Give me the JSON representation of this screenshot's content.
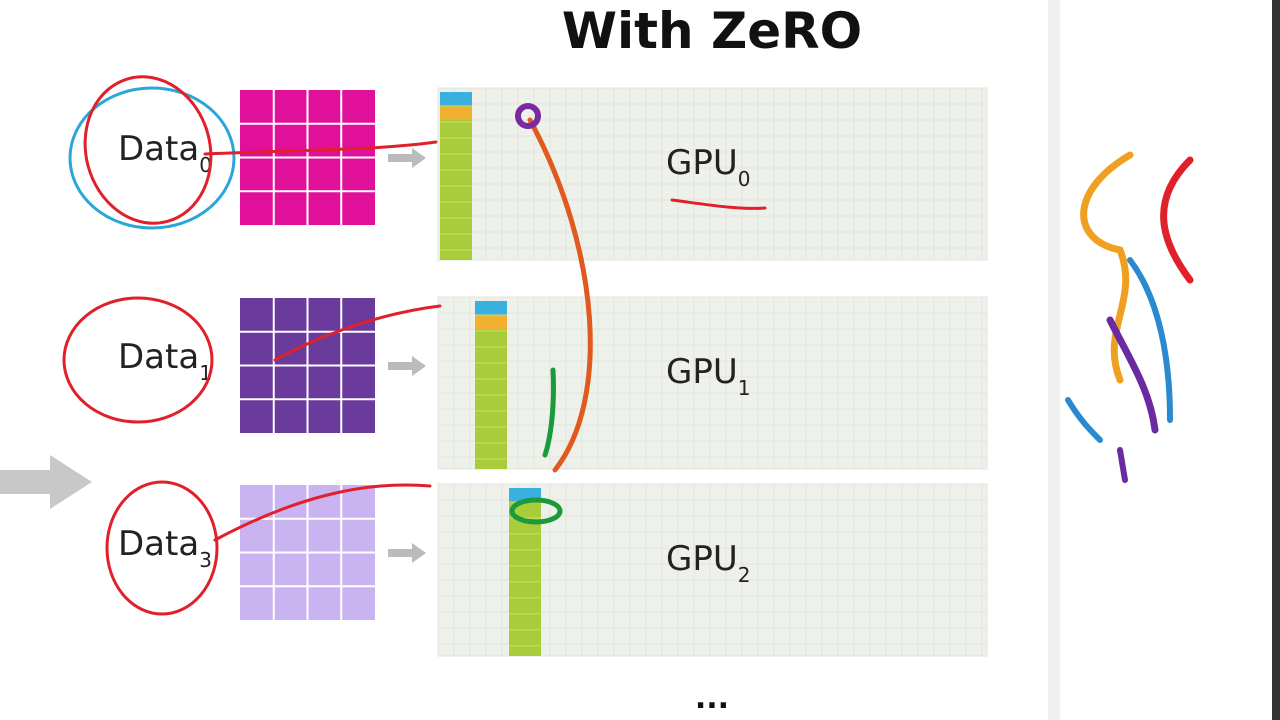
{
  "title": "With ZeRO",
  "rows": [
    {
      "data": "Data",
      "data_sub": "0",
      "gpu": "GPU",
      "gpu_sub": "0"
    },
    {
      "data": "Data",
      "data_sub": "1",
      "gpu": "GPU",
      "gpu_sub": "1"
    },
    {
      "data": "Data",
      "data_sub": "3",
      "gpu": "GPU",
      "gpu_sub": "2"
    }
  ],
  "ellipsis": "..."
}
